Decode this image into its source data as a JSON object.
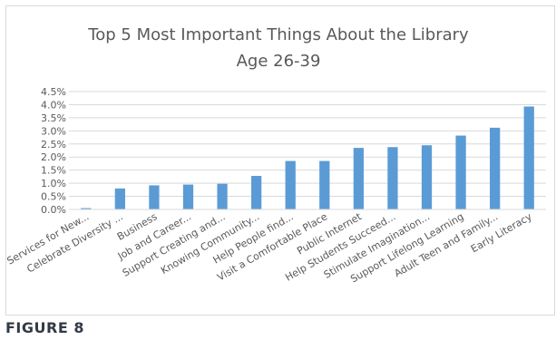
{
  "figure_caption": "FIGURE 8",
  "chart_data": {
    "type": "bar",
    "title": "Top 5 Most Important Things About the Library",
    "subtitle": "Age 26-39",
    "categories": [
      "Services for New...",
      "Celebrate Diversity ...",
      "Business",
      "Job and Career...",
      "Support Creating and...",
      "Knowing Community...",
      "Help People find...",
      "Visit a Comfortable Place",
      "Public Internet",
      "Help Students Succeed...",
      "Stimulate Imagination...",
      "Support Lifelong Learning",
      "Adult Teen and Family...",
      "Early Literacy"
    ],
    "values": [
      0.05,
      0.8,
      0.92,
      0.95,
      0.98,
      1.28,
      1.85,
      1.85,
      2.35,
      2.38,
      2.45,
      2.82,
      3.12,
      3.93
    ],
    "yticks": [
      "0.0%",
      "0.5%",
      "1.0%",
      "1.5%",
      "2.0%",
      "2.5%",
      "3.0%",
      "3.5%",
      "4.0%",
      "4.5%"
    ],
    "ylim": [
      0,
      4.5
    ],
    "yunit": "%",
    "xlabel": "",
    "ylabel": "",
    "grid": true,
    "legend": "none",
    "bar_color": "#5b9bd5",
    "grid_color": "#d9d9d9",
    "text_color": "#595959"
  }
}
